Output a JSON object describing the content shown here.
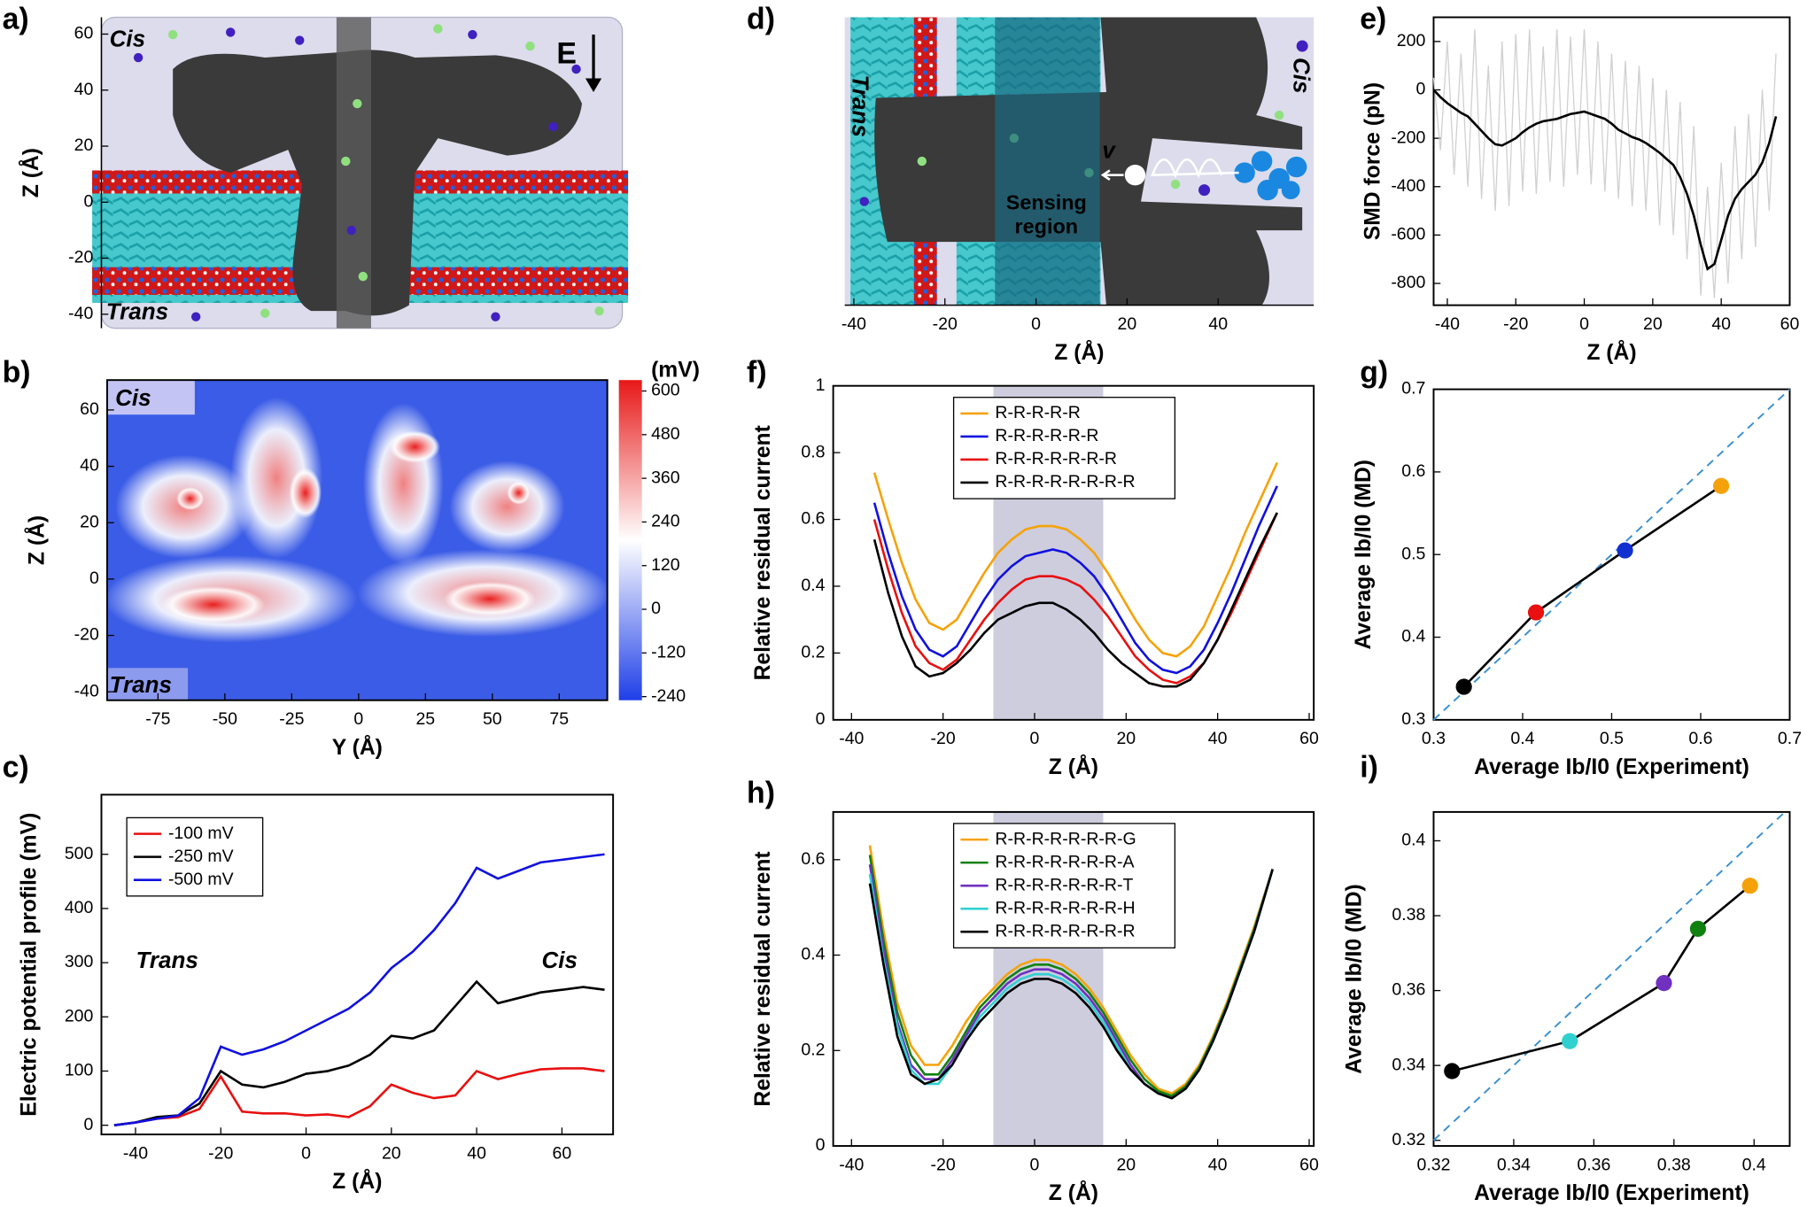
{
  "chart_data": [
    {
      "type": "image",
      "label": "a)",
      "ylabel": "Z (Å)",
      "ylim": [
        -45,
        66
      ],
      "yticks": [
        -40,
        -20,
        0,
        20,
        40,
        60
      ],
      "annotations": [
        "Cis",
        "Trans",
        "E"
      ]
    },
    {
      "type": "contour",
      "label": "b)",
      "xlabel": "Y (Å)",
      "ylabel": "Z (Å)",
      "xlim": [
        -94,
        93
      ],
      "ylim": [
        -43,
        70.6
      ],
      "xticks": [
        -75,
        -50,
        -25,
        0,
        25,
        50,
        75
      ],
      "yticks": [
        -40,
        -20,
        0,
        20,
        40,
        60
      ],
      "annotations": [
        "Cis",
        "Trans"
      ],
      "colorbar": {
        "label": "(mV)",
        "lim": [
          -250,
          630
        ],
        "ticks": [
          -240,
          -120,
          0,
          120,
          240,
          360,
          480,
          600
        ],
        "colors": [
          "#1f3fe8",
          "#ffffff",
          "#e81818"
        ]
      }
    },
    {
      "type": "line",
      "label": "c)",
      "xlabel": "Z (Å)",
      "ylabel": "Electric potential profile (mV)",
      "xlim": [
        -48,
        72
      ],
      "ylim": [
        -17,
        610
      ],
      "xticks": [
        -40,
        -20,
        0,
        20,
        40,
        60
      ],
      "yticks": [
        0,
        100,
        200,
        300,
        400,
        500
      ],
      "legend": "upper left",
      "annotations": [
        "Trans",
        "Cis"
      ],
      "x": [
        -45,
        -40,
        -35,
        -30,
        -25,
        -20,
        -15,
        -10,
        -5,
        0,
        5,
        10,
        15,
        20,
        25,
        30,
        35,
        40,
        45,
        50,
        55,
        60,
        65,
        70
      ],
      "series": [
        {
          "name": "-100 mV",
          "color": "#e81010",
          "values": [
            0,
            5,
            12,
            15,
            30,
            90,
            25,
            22,
            22,
            18,
            20,
            15,
            35,
            75,
            60,
            50,
            55,
            100,
            85,
            95,
            103,
            105,
            105,
            100
          ]
        },
        {
          "name": "-250 mV",
          "color": "#000000",
          "values": [
            0,
            5,
            15,
            18,
            40,
            100,
            75,
            70,
            80,
            95,
            100,
            110,
            130,
            165,
            160,
            175,
            220,
            265,
            225,
            235,
            245,
            250,
            255,
            250
          ]
        },
        {
          "name": "-500 mV",
          "color": "#1010e0",
          "values": [
            0,
            5,
            12,
            18,
            50,
            145,
            130,
            140,
            155,
            175,
            195,
            215,
            245,
            290,
            320,
            360,
            410,
            475,
            455,
            470,
            485,
            490,
            495,
            500
          ]
        }
      ]
    },
    {
      "type": "image",
      "label": "d)",
      "xlabel": "Z (Å)",
      "xlim": [
        -42,
        61
      ],
      "xticks": [
        -40,
        -20,
        0,
        20,
        40
      ],
      "shaded_x": [
        -9,
        14
      ],
      "annotations": [
        "Trans",
        "Cis",
        "Sensing",
        "region",
        "v"
      ]
    },
    {
      "type": "line",
      "label": "e)",
      "xlabel": "Z (Å)",
      "ylabel": "SMD force (pN)",
      "xlim": [
        -44,
        60
      ],
      "ylim": [
        -890,
        300
      ],
      "xticks": [
        -40,
        -20,
        0,
        20,
        40,
        60
      ],
      "yticks": [
        -800,
        -600,
        -400,
        -200,
        0,
        200
      ],
      "x": [
        -44,
        -42,
        -40,
        -38,
        -36,
        -34,
        -32,
        -30,
        -28,
        -26,
        -24,
        -22,
        -20,
        -18,
        -16,
        -14,
        -12,
        -10,
        -8,
        -6,
        -4,
        -2,
        0,
        2,
        4,
        6,
        8,
        10,
        12,
        14,
        16,
        18,
        20,
        22,
        24,
        26,
        28,
        30,
        32,
        34,
        36,
        38,
        40,
        42,
        44,
        46,
        48,
        50,
        52,
        54,
        56
      ],
      "series": [
        {
          "color": "#d0d0d0",
          "values": [
            50,
            -250,
            200,
            -350,
            150,
            -400,
            250,
            -450,
            100,
            -500,
            200,
            -480,
            230,
            -420,
            250,
            -430,
            180,
            -380,
            250,
            -400,
            220,
            -350,
            250,
            -390,
            200,
            -420,
            150,
            -450,
            120,
            -480,
            100,
            -500,
            50,
            -560,
            0,
            -600,
            -50,
            -700,
            -150,
            -850,
            -400,
            -860,
            -300,
            -800,
            -150,
            -700,
            -100,
            -650,
            0,
            -500,
            150
          ]
        },
        {
          "color": "#000000",
          "values": [
            0,
            -30,
            -55,
            -75,
            -95,
            -110,
            -140,
            -170,
            -200,
            -225,
            -230,
            -215,
            -200,
            -175,
            -155,
            -140,
            -130,
            -125,
            -120,
            -110,
            -100,
            -95,
            -90,
            -100,
            -110,
            -120,
            -140,
            -165,
            -180,
            -195,
            -205,
            -220,
            -240,
            -260,
            -285,
            -310,
            -360,
            -430,
            -520,
            -640,
            -740,
            -720,
            -620,
            -520,
            -450,
            -410,
            -380,
            -350,
            -300,
            -220,
            -110
          ]
        }
      ]
    },
    {
      "type": "line",
      "label": "f)",
      "xlabel": "Z (Å)",
      "ylabel": "Relative residual current",
      "xlim": [
        -44,
        61
      ],
      "ylim": [
        0,
        1
      ],
      "xticks": [
        -40,
        -20,
        0,
        20,
        40,
        60
      ],
      "yticks": [
        0,
        0.2,
        0.4,
        0.6,
        0.8,
        1
      ],
      "legend": "upper center",
      "shaded_x": [
        -9,
        15
      ],
      "x": [
        -35,
        -32,
        -29,
        -26,
        -23,
        -20,
        -17,
        -14,
        -11,
        -8,
        -5,
        -2,
        1,
        4,
        7,
        10,
        13,
        16,
        19,
        22,
        25,
        28,
        31,
        34,
        37,
        40,
        43,
        46,
        49,
        53
      ],
      "series": [
        {
          "name": "R-R-R-R-R",
          "color": "#f5a20a",
          "values": [
            0.74,
            0.6,
            0.47,
            0.36,
            0.29,
            0.27,
            0.3,
            0.37,
            0.44,
            0.5,
            0.54,
            0.57,
            0.58,
            0.58,
            0.57,
            0.54,
            0.5,
            0.44,
            0.37,
            0.3,
            0.24,
            0.2,
            0.19,
            0.22,
            0.28,
            0.37,
            0.46,
            0.56,
            0.65,
            0.77
          ]
        },
        {
          "name": "R-R-R-R-R-R",
          "color": "#1010e0",
          "values": [
            0.65,
            0.5,
            0.37,
            0.27,
            0.21,
            0.19,
            0.22,
            0.29,
            0.36,
            0.42,
            0.46,
            0.49,
            0.5,
            0.51,
            0.5,
            0.47,
            0.43,
            0.37,
            0.3,
            0.23,
            0.18,
            0.15,
            0.14,
            0.16,
            0.21,
            0.29,
            0.38,
            0.48,
            0.58,
            0.7
          ]
        },
        {
          "name": "R-R-R-R-R-R-R",
          "color": "#e81010",
          "values": [
            0.6,
            0.45,
            0.32,
            0.22,
            0.17,
            0.15,
            0.18,
            0.24,
            0.3,
            0.35,
            0.39,
            0.42,
            0.43,
            0.43,
            0.42,
            0.4,
            0.36,
            0.31,
            0.25,
            0.19,
            0.15,
            0.12,
            0.11,
            0.13,
            0.17,
            0.24,
            0.32,
            0.41,
            0.5,
            0.62
          ]
        },
        {
          "name": "R-R-R-R-R-R-R-R",
          "color": "#000000",
          "values": [
            0.54,
            0.38,
            0.25,
            0.16,
            0.13,
            0.14,
            0.17,
            0.21,
            0.26,
            0.3,
            0.32,
            0.34,
            0.35,
            0.35,
            0.33,
            0.3,
            0.26,
            0.21,
            0.17,
            0.14,
            0.11,
            0.1,
            0.1,
            0.12,
            0.17,
            0.24,
            0.33,
            0.42,
            0.51,
            0.62
          ]
        }
      ]
    },
    {
      "type": "scatter",
      "label": "g)",
      "xlabel": "Average Ib/I0 (Experiment)",
      "ylabel": "Average Ib/I0 (MD)",
      "xlim": [
        0.3,
        0.7
      ],
      "ylim": [
        0.3,
        0.7
      ],
      "xticks": [
        0.3,
        0.4,
        0.5,
        0.6,
        0.7
      ],
      "yticks": [
        0.3,
        0.4,
        0.5,
        0.6,
        0.7
      ],
      "diagonal": true,
      "connect": true,
      "x": [
        0.334,
        0.415,
        0.515,
        0.623
      ],
      "values": [
        0.34,
        0.43,
        0.505,
        0.583
      ],
      "colors": [
        "#000000",
        "#e81010",
        "#1030d0",
        "#f5a20a"
      ]
    },
    {
      "type": "line",
      "label": "h)",
      "xlabel": "Z (Å)",
      "ylabel": "Relative residual current",
      "xlim": [
        -44,
        61
      ],
      "ylim": [
        0,
        0.7
      ],
      "xticks": [
        -40,
        -20,
        0,
        20,
        40,
        60
      ],
      "yticks": [
        0,
        0.2,
        0.4,
        0.6
      ],
      "legend": "upper center",
      "shaded_x": [
        -9,
        15
      ],
      "x": [
        -36,
        -33,
        -30,
        -27,
        -24,
        -21,
        -18,
        -15,
        -12,
        -9,
        -6,
        -3,
        0,
        3,
        6,
        9,
        12,
        15,
        18,
        21,
        24,
        27,
        30,
        33,
        36,
        39,
        42,
        45,
        48,
        52
      ],
      "series": [
        {
          "name": "R-R-R-R-R-R-R-G",
          "color": "#f5a20a",
          "values": [
            0.63,
            0.45,
            0.3,
            0.21,
            0.17,
            0.17,
            0.21,
            0.26,
            0.3,
            0.33,
            0.36,
            0.38,
            0.39,
            0.39,
            0.38,
            0.36,
            0.33,
            0.29,
            0.24,
            0.19,
            0.15,
            0.12,
            0.11,
            0.13,
            0.17,
            0.23,
            0.3,
            0.38,
            0.46,
            0.58
          ]
        },
        {
          "name": "R-R-R-R-R-R-R-A",
          "color": "#108010",
          "values": [
            0.61,
            0.43,
            0.28,
            0.19,
            0.15,
            0.15,
            0.19,
            0.24,
            0.29,
            0.32,
            0.35,
            0.37,
            0.38,
            0.38,
            0.37,
            0.35,
            0.32,
            0.28,
            0.23,
            0.18,
            0.14,
            0.115,
            0.105,
            0.125,
            0.165,
            0.225,
            0.295,
            0.375,
            0.455,
            0.58
          ]
        },
        {
          "name": "R-R-R-R-R-R-R-T",
          "color": "#7030c0",
          "values": [
            0.59,
            0.41,
            0.26,
            0.17,
            0.14,
            0.14,
            0.18,
            0.23,
            0.28,
            0.31,
            0.34,
            0.36,
            0.37,
            0.37,
            0.36,
            0.34,
            0.31,
            0.27,
            0.22,
            0.17,
            0.13,
            0.11,
            0.1,
            0.12,
            0.16,
            0.22,
            0.29,
            0.37,
            0.45,
            0.58
          ]
        },
        {
          "name": "R-R-R-R-R-R-R-H",
          "color": "#30d0d0",
          "values": [
            0.57,
            0.39,
            0.25,
            0.16,
            0.13,
            0.13,
            0.17,
            0.22,
            0.27,
            0.3,
            0.33,
            0.35,
            0.36,
            0.36,
            0.35,
            0.33,
            0.3,
            0.26,
            0.21,
            0.16,
            0.13,
            0.11,
            0.1,
            0.12,
            0.16,
            0.22,
            0.29,
            0.37,
            0.45,
            0.58
          ]
        },
        {
          "name": "R-R-R-R-R-R-R-R",
          "color": "#000000",
          "values": [
            0.55,
            0.38,
            0.23,
            0.15,
            0.13,
            0.14,
            0.17,
            0.22,
            0.26,
            0.29,
            0.32,
            0.34,
            0.35,
            0.35,
            0.34,
            0.32,
            0.29,
            0.25,
            0.2,
            0.16,
            0.13,
            0.11,
            0.1,
            0.12,
            0.16,
            0.22,
            0.29,
            0.37,
            0.45,
            0.58
          ]
        }
      ]
    },
    {
      "type": "scatter",
      "label": "i)",
      "xlabel": "Average Ib/I0 (Experiment)",
      "ylabel": "Average Ib/I0 (MD)",
      "xlim": [
        0.32,
        0.4089
      ],
      "ylim": [
        0.3185,
        0.4077
      ],
      "xticks": [
        0.32,
        0.34,
        0.36,
        0.38,
        0.4
      ],
      "yticks": [
        0.32,
        0.34,
        0.36,
        0.38,
        0.4
      ],
      "diagonal": true,
      "connect": true,
      "x": [
        0.3246,
        0.354,
        0.3775,
        0.386,
        0.399
      ],
      "values": [
        0.3385,
        0.3465,
        0.362,
        0.3765,
        0.388
      ],
      "colors": [
        "#000000",
        "#30d0d0",
        "#7030c0",
        "#108010",
        "#f5a20a"
      ]
    }
  ]
}
